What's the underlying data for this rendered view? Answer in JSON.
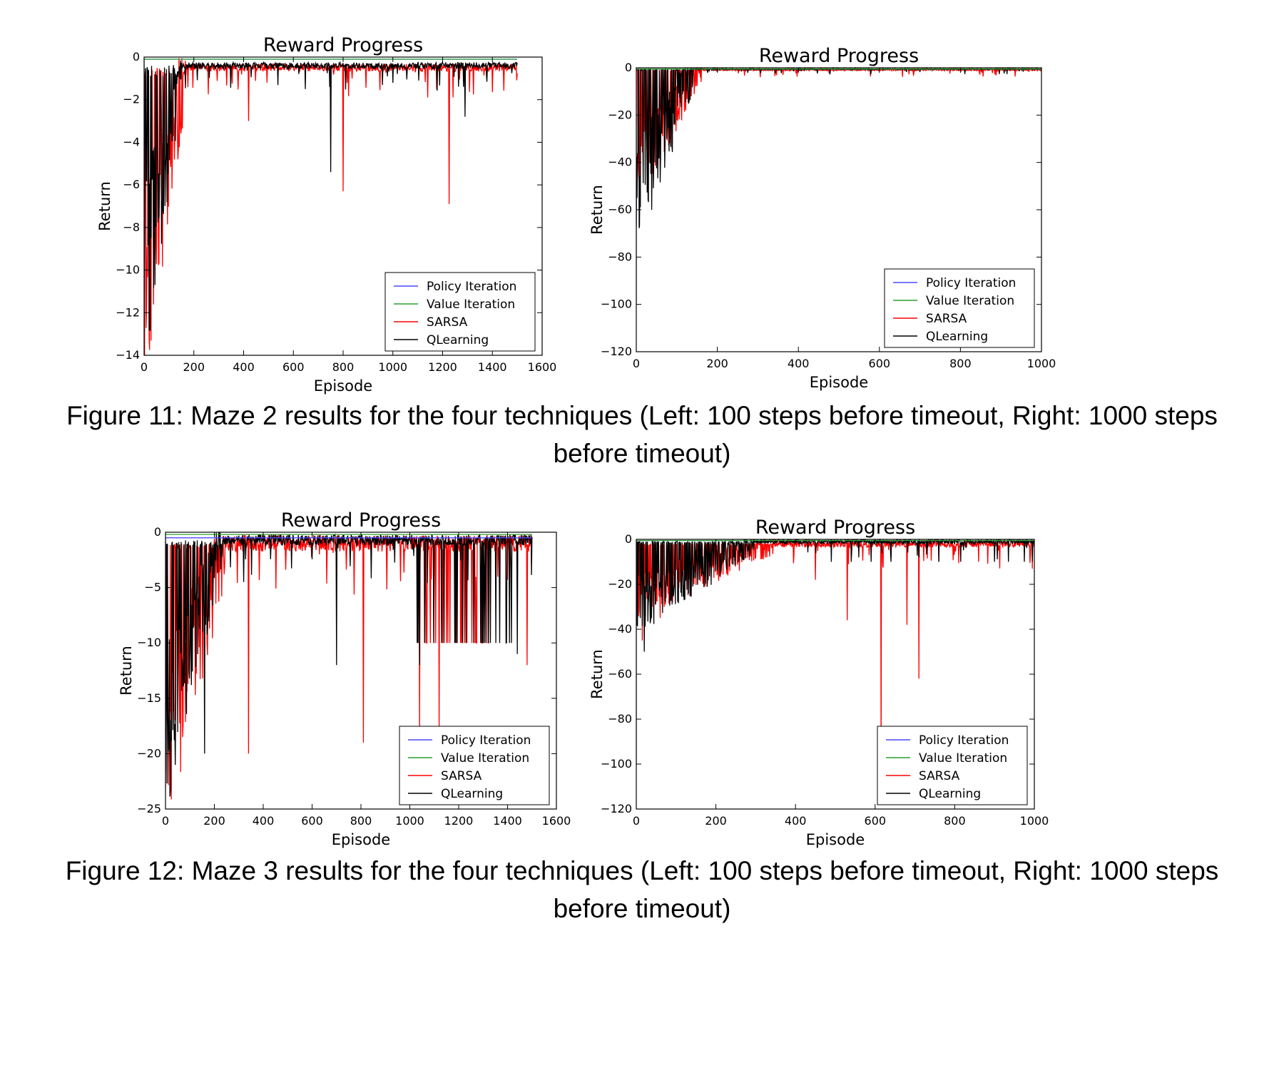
{
  "figures": [
    {
      "caption_title": "Figure 11:",
      "caption_text": "Maze 2 results for the four techniques (Left: 100 steps before timeout, Right: 1000 steps before timeout)"
    },
    {
      "caption_title": "Figure 12:",
      "caption_text": "Maze 3 results for the four techniques (Left: 100 steps before timeout, Right: 1000 steps before timeout)"
    }
  ],
  "colors": {
    "policy_iteration": "#4a4aff",
    "value_iteration": "#2ca02c",
    "sarsa": "#ff0000",
    "qlearning": "#000000"
  },
  "chart_data": [
    {
      "type": "line",
      "title": "Reward Progress",
      "xlabel": "Episode",
      "ylabel": "Return",
      "xlim": [
        0,
        1600
      ],
      "ylim": [
        -14,
        0
      ],
      "xticks": [
        0,
        200,
        400,
        600,
        800,
        1000,
        1200,
        1400,
        1600
      ],
      "yticks": [
        0,
        -2,
        -4,
        -6,
        -8,
        -10,
        -12,
        -14
      ],
      "legend_position": "bottom-right",
      "legend": [
        "Policy Iteration",
        "Value Iteration",
        "SARSA",
        "QLearning"
      ],
      "series": [
        {
          "name": "Policy Iteration",
          "color_key": "policy_iteration",
          "x": [
            0,
            0,
            1500
          ],
          "y": [
            -12,
            -0.1,
            -0.1
          ]
        },
        {
          "name": "Value Iteration",
          "color_key": "value_iteration",
          "x": [
            0,
            1500
          ],
          "y": [
            -0.1,
            -0.1
          ]
        },
        {
          "name": "SARSA",
          "color_key": "sarsa",
          "profile": {
            "episodes": 1500,
            "start": -11,
            "converge_episode": 170,
            "settled": -0.5,
            "noise": 0.35,
            "seed": 11,
            "spikes": [
              [
                420,
                -3
              ],
              [
                800,
                -6.3
              ],
              [
                1225,
                -6.9
              ]
            ]
          }
        },
        {
          "name": "QLearning",
          "color_key": "qlearning",
          "profile": {
            "episodes": 1500,
            "start": -10.5,
            "converge_episode": 150,
            "settled": -0.4,
            "noise": 0.3,
            "seed": 29,
            "spikes": [
              [
                750,
                -5.4
              ],
              [
                1290,
                -2.8
              ]
            ]
          }
        }
      ]
    },
    {
      "type": "line",
      "title": "Reward Progress",
      "xlabel": "Episode",
      "ylabel": "Return",
      "xlim": [
        0,
        1000
      ],
      "ylim": [
        -120,
        0
      ],
      "xticks": [
        0,
        200,
        400,
        600,
        800,
        1000
      ],
      "yticks": [
        0,
        -20,
        -40,
        -60,
        -80,
        -100,
        -120
      ],
      "legend_position": "bottom-right",
      "legend": [
        "Policy Iteration",
        "Value Iteration",
        "SARSA",
        "QLearning"
      ],
      "series": [
        {
          "name": "Policy Iteration",
          "color_key": "policy_iteration",
          "x": [
            0,
            0,
            1000
          ],
          "y": [
            -100,
            -0.5,
            -0.5
          ]
        },
        {
          "name": "Value Iteration",
          "color_key": "value_iteration",
          "x": [
            0,
            1000
          ],
          "y": [
            -0.5,
            -0.5
          ]
        },
        {
          "name": "SARSA",
          "color_key": "sarsa",
          "profile": {
            "episodes": 1000,
            "start": -40,
            "converge_episode": 160,
            "settled": -0.8,
            "noise": 0.8,
            "seed": 43,
            "spikes": [
              [
                5,
                -40
              ],
              [
                160,
                -6
              ]
            ]
          }
        },
        {
          "name": "QLearning",
          "color_key": "qlearning",
          "profile": {
            "episodes": 1000,
            "start": -55,
            "converge_episode": 140,
            "settled": -0.6,
            "noise": 0.6,
            "seed": 57,
            "spikes": [
              [
                2,
                -55
              ]
            ]
          }
        }
      ]
    },
    {
      "type": "line",
      "title": "Reward Progress",
      "xlabel": "Episode",
      "ylabel": "Return",
      "xlim": [
        0,
        1600
      ],
      "ylim": [
        -25,
        0
      ],
      "xticks": [
        0,
        200,
        400,
        600,
        800,
        1000,
        1200,
        1400,
        1600
      ],
      "yticks": [
        0,
        -5,
        -10,
        -15,
        -20,
        -25
      ],
      "legend_position": "bottom-right",
      "legend": [
        "Policy Iteration",
        "Value Iteration",
        "SARSA",
        "QLearning"
      ],
      "series": [
        {
          "name": "Policy Iteration",
          "color_key": "policy_iteration",
          "x": [
            0,
            0,
            1500
          ],
          "y": [
            -21,
            -0.5,
            -0.5
          ]
        },
        {
          "name": "Value Iteration",
          "color_key": "value_iteration",
          "x": [
            0,
            1500
          ],
          "y": [
            -0.2,
            -0.2
          ]
        },
        {
          "name": "SARSA",
          "color_key": "sarsa",
          "profile": {
            "episodes": 1500,
            "start": -19,
            "converge_episode": 250,
            "settled": -1.0,
            "noise": 1.5,
            "seed": 71,
            "spikes": [
              [
                340,
                -20
              ],
              [
                810,
                -19
              ],
              [
                1040,
                -18
              ],
              [
                1120,
                -18
              ],
              [
                1480,
                -12
              ]
            ],
            "plateau": [
              1030,
              1400,
              -10
            ]
          }
        },
        {
          "name": "QLearning",
          "color_key": "qlearning",
          "profile": {
            "episodes": 1500,
            "start": -18,
            "converge_episode": 230,
            "settled": -0.7,
            "noise": 1.0,
            "seed": 89,
            "spikes": [
              [
                160,
                -20
              ],
              [
                700,
                -12
              ],
              [
                1040,
                -12
              ],
              [
                1130,
                -10
              ],
              [
                1440,
                -11
              ]
            ],
            "plateau": [
              1030,
              1420,
              -10
            ]
          }
        }
      ]
    },
    {
      "type": "line",
      "title": "Reward Progress",
      "xlabel": "Episode",
      "ylabel": "Return",
      "xlim": [
        0,
        1000
      ],
      "ylim": [
        -120,
        0
      ],
      "xticks": [
        0,
        200,
        400,
        600,
        800,
        1000
      ],
      "yticks": [
        0,
        -20,
        -40,
        -60,
        -80,
        -100,
        -120
      ],
      "legend_position": "bottom-right",
      "legend": [
        "Policy Iteration",
        "Value Iteration",
        "SARSA",
        "QLearning"
      ],
      "series": [
        {
          "name": "Policy Iteration",
          "color_key": "policy_iteration",
          "x": [
            0,
            0,
            1000
          ],
          "y": [
            -100,
            -0.5,
            -0.5
          ]
        },
        {
          "name": "Value Iteration",
          "color_key": "value_iteration",
          "x": [
            0,
            1000
          ],
          "y": [
            -0.5,
            -0.5
          ]
        },
        {
          "name": "SARSA",
          "color_key": "sarsa",
          "profile": {
            "episodes": 1000,
            "start": -25,
            "converge_episode": 350,
            "settled": -2.0,
            "noise": 3.0,
            "seed": 101,
            "spikes": [
              [
                15,
                -45
              ],
              [
                60,
                -35
              ],
              [
                450,
                -18
              ],
              [
                530,
                -36
              ],
              [
                615,
                -102
              ],
              [
                680,
                -38
              ],
              [
                710,
                -62
              ],
              [
                760,
                -10
              ],
              [
                860,
                -10
              ]
            ]
          }
        },
        {
          "name": "QLearning",
          "color_key": "qlearning",
          "profile": {
            "episodes": 1000,
            "start": -30,
            "converge_episode": 300,
            "settled": -1.0,
            "noise": 2.0,
            "seed": 113,
            "spikes": [
              [
                20,
                -50
              ],
              [
                10,
                -35
              ],
              [
                490,
                -10
              ],
              [
                540,
                -10
              ],
              [
                590,
                -10
              ],
              [
                640,
                -10
              ],
              [
                760,
                -10
              ],
              [
                815,
                -10
              ],
              [
                900,
                -10
              ],
              [
                935,
                -10
              ],
              [
                975,
                -10
              ],
              [
                995,
                -10
              ]
            ]
          }
        }
      ]
    }
  ]
}
